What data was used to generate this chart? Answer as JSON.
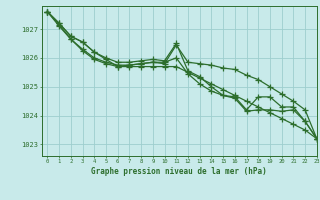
{
  "title": "",
  "xlabel": "Graphe pression niveau de la mer (hPa)",
  "bg_color": "#c8eaea",
  "grid_color": "#9ecece",
  "line_color": "#2d6e2d",
  "xlim": [
    -0.5,
    23
  ],
  "ylim": [
    1022.6,
    1027.8
  ],
  "yticks": [
    1023,
    1024,
    1025,
    1026,
    1027
  ],
  "xticks": [
    0,
    1,
    2,
    3,
    4,
    5,
    6,
    7,
    8,
    9,
    10,
    11,
    12,
    13,
    14,
    15,
    16,
    17,
    18,
    19,
    20,
    21,
    22,
    23
  ],
  "series1": [
    1027.6,
    1027.2,
    1026.75,
    1026.55,
    1026.2,
    1026.0,
    1025.85,
    1025.85,
    1025.9,
    1025.95,
    1025.9,
    1026.5,
    1025.55,
    1025.35,
    1025.0,
    1024.7,
    1024.65,
    1024.2,
    1024.65,
    1024.65,
    1024.3,
    1024.3,
    1023.8,
    1023.2
  ],
  "series2": [
    1027.6,
    1027.2,
    1026.75,
    1026.55,
    1026.2,
    1025.95,
    1025.7,
    1025.75,
    1025.8,
    1025.85,
    1025.8,
    1026.45,
    1025.85,
    1025.8,
    1025.75,
    1025.65,
    1025.6,
    1025.4,
    1025.25,
    1025.0,
    1024.75,
    1024.5,
    1024.2,
    1023.2
  ],
  "series3": [
    1027.6,
    1027.15,
    1026.65,
    1026.3,
    1026.0,
    1025.85,
    1025.75,
    1025.75,
    1025.8,
    1025.85,
    1025.85,
    1026.0,
    1025.45,
    1025.1,
    1024.85,
    1024.7,
    1024.6,
    1024.15,
    1024.2,
    1024.2,
    1024.15,
    1024.2,
    1023.8,
    1023.2
  ],
  "series4": [
    1027.6,
    1027.1,
    1026.65,
    1026.25,
    1025.95,
    1025.8,
    1025.7,
    1025.7,
    1025.7,
    1025.7,
    1025.7,
    1025.7,
    1025.5,
    1025.3,
    1025.1,
    1024.9,
    1024.7,
    1024.5,
    1024.3,
    1024.1,
    1023.9,
    1023.7,
    1023.5,
    1023.2
  ]
}
